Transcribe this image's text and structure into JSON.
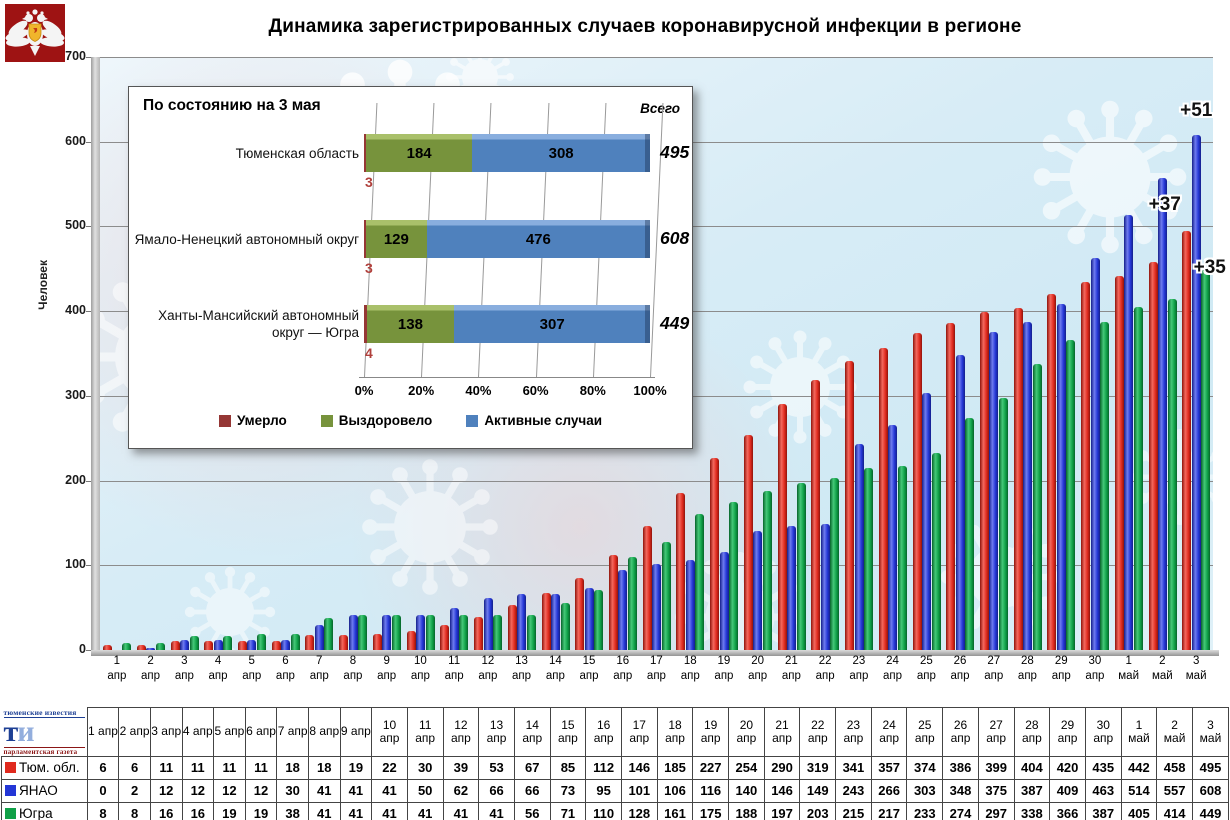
{
  "title": "Динамика зарегистрированных случаев коронавирусной инфекции в регионе",
  "y_axis": {
    "label": "Человек",
    "min": 0,
    "max": 700,
    "step": 100
  },
  "chart_data": [
    {
      "type": "bar",
      "title": "Динамика зарегистрированных случаев коронавирусной инфекции в регионе",
      "xlabel": "",
      "ylabel": "Человек",
      "ylim": [
        0,
        700
      ],
      "grid": true,
      "categories": [
        "1 апр",
        "2 апр",
        "3 апр",
        "4 апр",
        "5 апр",
        "6 апр",
        "7 апр",
        "8 апр",
        "9 апр",
        "10 апр",
        "11 апр",
        "12 апр",
        "13 апр",
        "14 апр",
        "15 апр",
        "16 апр",
        "17 апр",
        "18 апр",
        "19 апр",
        "20 апр",
        "21 апр",
        "22 апр",
        "23 апр",
        "24 апр",
        "25 апр",
        "26 апр",
        "27 апр",
        "28 апр",
        "29 апр",
        "30 апр",
        "1 май",
        "2 май",
        "3 май"
      ],
      "series": [
        {
          "name": "Тюм. обл.",
          "color": "#e02a1e",
          "values": [
            6,
            6,
            11,
            11,
            11,
            11,
            18,
            18,
            19,
            22,
            30,
            39,
            53,
            67,
            85,
            112,
            146,
            185,
            227,
            254,
            290,
            319,
            341,
            357,
            374,
            386,
            399,
            404,
            420,
            435,
            442,
            458,
            495
          ]
        },
        {
          "name": "ЯНАО",
          "color": "#2336d6",
          "values": [
            0,
            2,
            12,
            12,
            12,
            12,
            30,
            41,
            41,
            41,
            50,
            62,
            66,
            66,
            73,
            95,
            101,
            106,
            116,
            140,
            146,
            149,
            243,
            266,
            303,
            348,
            375,
            387,
            409,
            463,
            514,
            557,
            608
          ]
        },
        {
          "name": "Югра",
          "color": "#0fa047",
          "values": [
            8,
            8,
            16,
            16,
            19,
            19,
            38,
            41,
            41,
            41,
            41,
            41,
            41,
            56,
            71,
            110,
            128,
            161,
            175,
            188,
            197,
            203,
            215,
            217,
            233,
            274,
            297,
            338,
            366,
            387,
            405,
            414,
            449
          ]
        }
      ],
      "annotations": [
        {
          "text": "+37",
          "series": 0,
          "category": 32
        },
        {
          "text": "+51",
          "series": 1,
          "category": 32
        },
        {
          "text": "+35",
          "series": 2,
          "category": 32
        }
      ]
    },
    {
      "type": "bar",
      "subtype": "horizontal-stacked-100pct",
      "title": "По состоянию на 3 мая",
      "total_label": "Всего",
      "x_ticks": [
        "0%",
        "20%",
        "40%",
        "60%",
        "80%",
        "100%"
      ],
      "legend": [
        {
          "label": "Умерло",
          "color": "#953735"
        },
        {
          "label": "Выздоровело",
          "color": "#77933C"
        },
        {
          "label": "Активные случаи",
          "color": "#4F81BD"
        }
      ],
      "rows": [
        {
          "region": "Тюменская область",
          "died": 3,
          "recovered": 184,
          "active": 308,
          "total": 495
        },
        {
          "region": "Ямало-Ненецкий автономный округ",
          "died": 3,
          "recovered": 129,
          "active": 476,
          "total": 608
        },
        {
          "region": "Ханты-Мансийский автономный округ — Югра",
          "died": 4,
          "recovered": 138,
          "active": 307,
          "total": 449
        }
      ]
    }
  ],
  "logos": {
    "coat_of_arms": {
      "background": "#9e1313",
      "shield": "#f0b52c"
    },
    "newspaper": {
      "top": "тюменские известия",
      "big_t": "т",
      "big_i": "и",
      "bottom": "парламентская газета"
    }
  }
}
